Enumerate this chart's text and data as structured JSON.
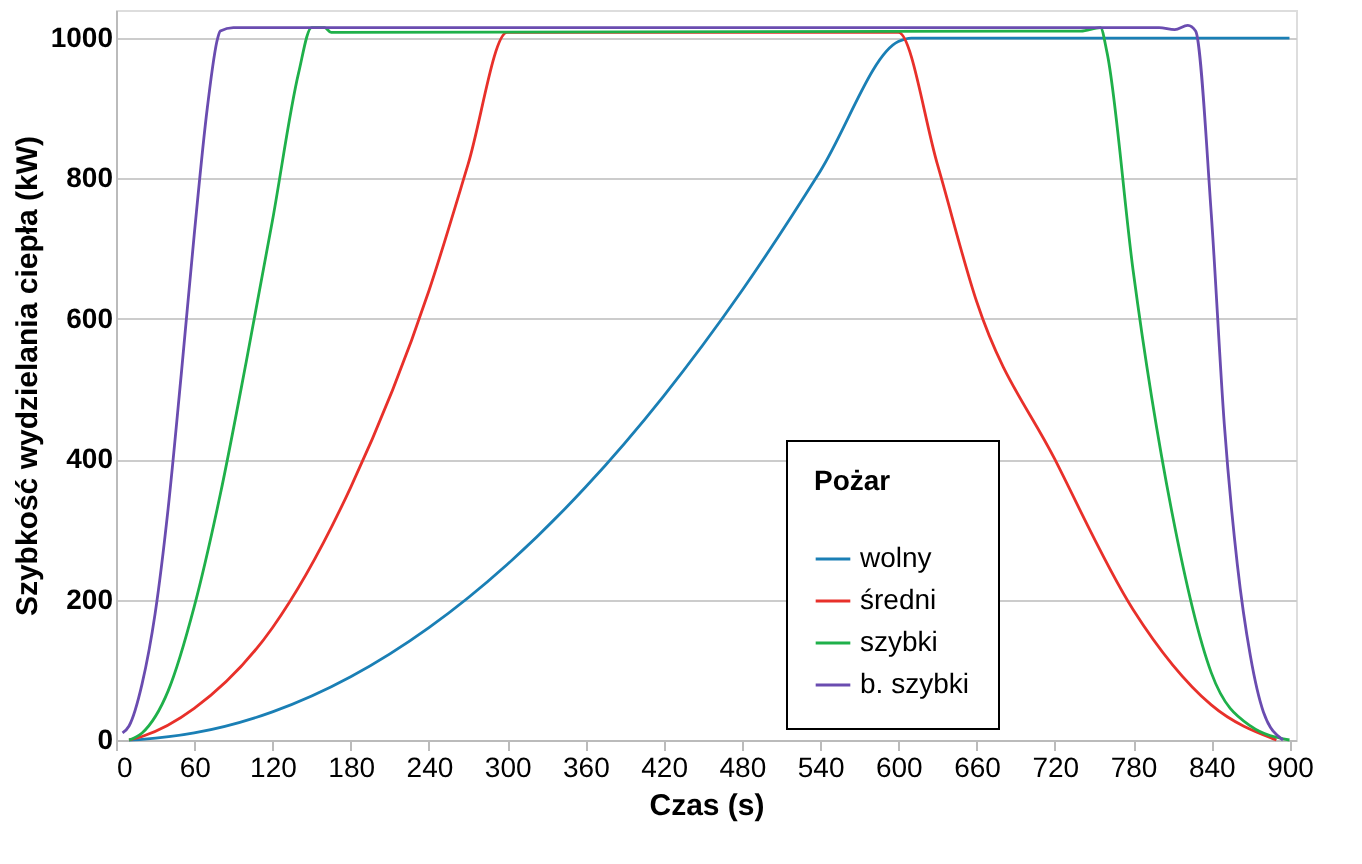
{
  "chart_data": {
    "type": "line",
    "xlabel": "Czas (s)",
    "ylabel": "Szybkość wydzielania ciepła (kW)",
    "legend_title": "Pożar",
    "xlim": [
      0,
      905
    ],
    "ylim": [
      0,
      1040
    ],
    "xticks": [
      0,
      60,
      120,
      180,
      240,
      300,
      360,
      420,
      480,
      540,
      600,
      660,
      720,
      780,
      840,
      900
    ],
    "yticks": [
      0,
      200,
      400,
      600,
      800,
      1000
    ],
    "grid": "y",
    "legend": "bottom right",
    "marker": "none",
    "line_style": "solid",
    "series": [
      {
        "name": "wolny",
        "color": "#1a7fb5",
        "x": [
          10,
          20,
          60,
          120,
          180,
          240,
          300,
          360,
          420,
          480,
          540,
          600,
          610,
          900
        ],
        "values": [
          0,
          1,
          10,
          40,
          90,
          160,
          250,
          360,
          490,
          640,
          810,
          995,
          1000,
          1000
        ]
      },
      {
        "name": "średni",
        "color": "#e8302a",
        "x": [
          10,
          20,
          60,
          120,
          180,
          240,
          270,
          300,
          600,
          630,
          660,
          720,
          780,
          840,
          890
        ],
        "values": [
          0,
          5,
          45,
          160,
          360,
          640,
          820,
          1008,
          1008,
          820,
          625,
          400,
          186,
          50,
          0
        ]
      },
      {
        "name": "szybki",
        "color": "#1fb04a",
        "x": [
          10,
          20,
          40,
          60,
          80,
          100,
          120,
          140,
          150,
          160,
          165,
          740,
          755,
          760,
          780,
          810,
          840,
          870,
          900
        ],
        "values": [
          0,
          10,
          70,
          190,
          350,
          540,
          740,
          950,
          1015,
          1015,
          1008,
          1010,
          1015,
          980,
          670,
          323,
          96,
          20,
          0
        ]
      },
      {
        "name": "b. szybki",
        "color": "#6a4cb0",
        "x": [
          5,
          10,
          20,
          30,
          40,
          50,
          60,
          70,
          78,
          80,
          90,
          800,
          812,
          822,
          828,
          840,
          850,
          860,
          870,
          880,
          895
        ],
        "values": [
          10,
          20,
          80,
          180,
          330,
          520,
          720,
          900,
          1000,
          1010,
          1015,
          1015,
          1012,
          1018,
          1010,
          750,
          450,
          250,
          120,
          40,
          0
        ]
      }
    ]
  }
}
